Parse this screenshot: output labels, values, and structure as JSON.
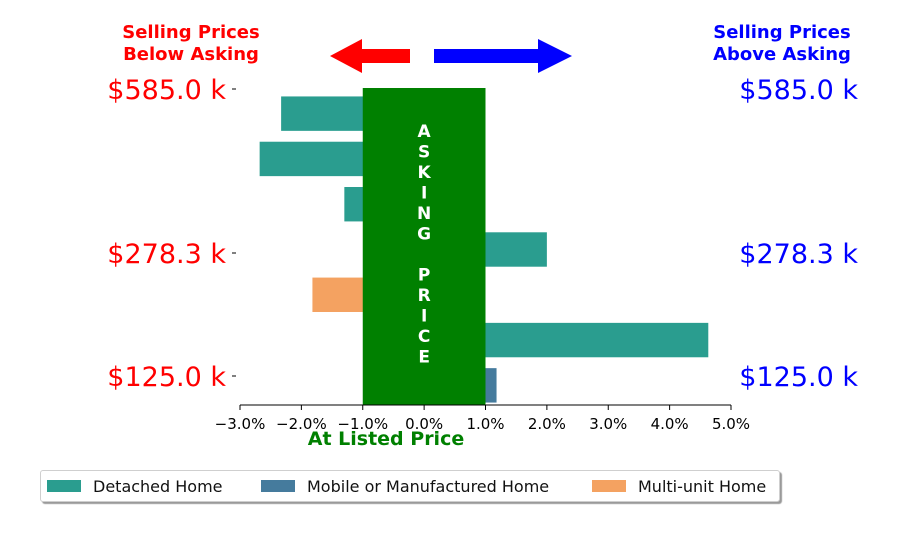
{
  "chart_data": {
    "type": "bar",
    "orientation": "horizontal",
    "header_left": [
      "Selling Prices",
      "Below Asking"
    ],
    "header_right": [
      "Selling Prices",
      "Above Asking"
    ],
    "header_left_color": "#ff0000",
    "header_right_color": "#0000ff",
    "center_band_label": "ASKING PRICE",
    "center_band_color": "#008000",
    "xlabel": "At Listed Price",
    "xlabel_color": "#008000",
    "xlim": [
      -3.0,
      5.0
    ],
    "xticks": [
      "−3.0%",
      "−2.0%",
      "−1.0%",
      "0.0%",
      "1.0%",
      "2.0%",
      "3.0%",
      "4.0%",
      "5.0%"
    ],
    "y_tick_labels_left": [
      "$585.0 k",
      "$278.3 k",
      "$125.0 k"
    ],
    "y_tick_labels_right": [
      "$585.0 k",
      "$278.3 k",
      "$125.0 k"
    ],
    "y_label_left_color": "#ff0000",
    "y_label_right_color": "#0000ff",
    "band_range_pct": [
      -1.0,
      1.0
    ],
    "series": [
      {
        "name": "Detached Home",
        "color": "#2a9d8f"
      },
      {
        "name": "Mobile or Manufactured Home",
        "color": "#457b9d"
      },
      {
        "name": "Multi-unit Home",
        "color": "#f4a261"
      }
    ],
    "bars": [
      {
        "series": "Detached Home",
        "value": -2.33
      },
      {
        "series": "Detached Home",
        "value": -2.68
      },
      {
        "series": "Detached Home",
        "value": -1.3
      },
      {
        "series": "Detached Home",
        "value": 2.0
      },
      {
        "series": "Multi-unit Home",
        "value": -1.82
      },
      {
        "series": "Detached Home",
        "value": 4.63
      },
      {
        "series": "Mobile or Manufactured Home",
        "value": 1.18
      }
    ],
    "legend_position": "bottom"
  }
}
